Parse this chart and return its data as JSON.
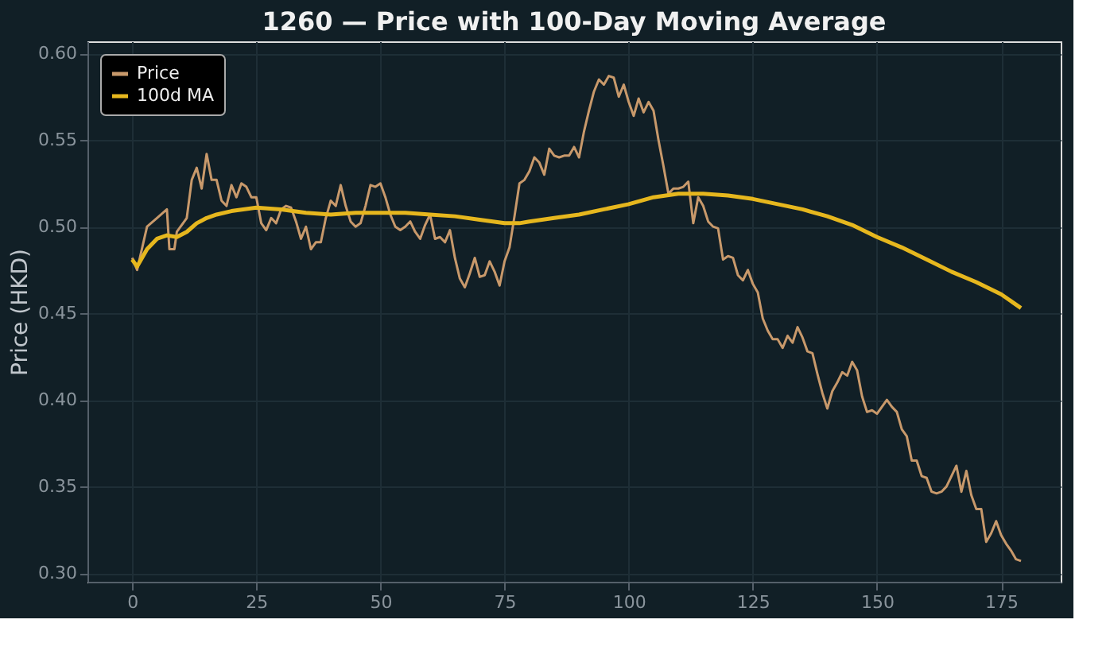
{
  "chart_data": {
    "type": "line",
    "title": "1260 — Price with 100-Day Moving Average",
    "ylabel": "Price (HKD)",
    "xlim": [
      -9,
      187
    ],
    "xticks": [
      0,
      25,
      50,
      75,
      100,
      125,
      150,
      175
    ],
    "ylim": [
      0.295,
      0.607
    ],
    "yticks": [
      {
        "value": 0.3,
        "label": "0.30"
      },
      {
        "value": 0.35,
        "label": "0.35"
      },
      {
        "value": 0.4,
        "label": "0.40"
      },
      {
        "value": 0.45,
        "label": "0.45"
      },
      {
        "value": 0.5,
        "label": "0.50"
      },
      {
        "value": 0.55,
        "label": "0.55"
      },
      {
        "value": 0.6,
        "label": "0.60"
      }
    ],
    "grid": true,
    "legend": "top left",
    "marker": "none",
    "line_style": "solid",
    "series": [
      {
        "name": "Price",
        "color": "#c8996b",
        "x": [
          0,
          1,
          3,
          5,
          7,
          7.5,
          8.5,
          9,
          11,
          12,
          13,
          14,
          15,
          16,
          17,
          18,
          19,
          20,
          21,
          22,
          23,
          24,
          25,
          26,
          27,
          28,
          29,
          30,
          31,
          32,
          33,
          34,
          35,
          36,
          37,
          38,
          39,
          40,
          41,
          42,
          43,
          44,
          45,
          46,
          47,
          48,
          49,
          50,
          51,
          52,
          53,
          54,
          55,
          56,
          57,
          58,
          59,
          60,
          61,
          62,
          63,
          64,
          65,
          66,
          67,
          68,
          69,
          70,
          71,
          72,
          73,
          74,
          75,
          76,
          77,
          78,
          79,
          80,
          81,
          82,
          83,
          84,
          85,
          86,
          87,
          88,
          89,
          90,
          91,
          92,
          93,
          94,
          95,
          96,
          97,
          98,
          99,
          100,
          101,
          102,
          103,
          104,
          105,
          106,
          107,
          108,
          109,
          110,
          111,
          112,
          113,
          114,
          115,
          116,
          117,
          118,
          119,
          120,
          121,
          122,
          123,
          124,
          125,
          126,
          127,
          128,
          129,
          130,
          131,
          132,
          133,
          134,
          135,
          136,
          137,
          138,
          139,
          140,
          141,
          142,
          143,
          144,
          145,
          146,
          147,
          148,
          149,
          150,
          151,
          152,
          153,
          154,
          155,
          156,
          157,
          158,
          159,
          160,
          161,
          162,
          163,
          164,
          165,
          166,
          167,
          168,
          169,
          170,
          171,
          172,
          173,
          174,
          175,
          176,
          177,
          178,
          179
        ],
        "values": [
          0.482,
          0.475,
          0.5,
          0.505,
          0.51,
          0.487,
          0.487,
          0.497,
          0.505,
          0.527,
          0.534,
          0.522,
          0.542,
          0.527,
          0.527,
          0.515,
          0.512,
          0.524,
          0.517,
          0.525,
          0.523,
          0.517,
          0.517,
          0.502,
          0.498,
          0.505,
          0.502,
          0.51,
          0.512,
          0.511,
          0.503,
          0.493,
          0.5,
          0.487,
          0.491,
          0.491,
          0.505,
          0.515,
          0.512,
          0.524,
          0.512,
          0.503,
          0.5,
          0.502,
          0.512,
          0.524,
          0.523,
          0.525,
          0.517,
          0.507,
          0.5,
          0.498,
          0.5,
          0.503,
          0.497,
          0.493,
          0.501,
          0.507,
          0.493,
          0.494,
          0.491,
          0.498,
          0.482,
          0.47,
          0.465,
          0.473,
          0.482,
          0.471,
          0.472,
          0.48,
          0.474,
          0.466,
          0.48,
          0.488,
          0.506,
          0.525,
          0.527,
          0.532,
          0.54,
          0.537,
          0.53,
          0.545,
          0.541,
          0.54,
          0.541,
          0.541,
          0.546,
          0.54,
          0.555,
          0.567,
          0.578,
          0.585,
          0.582,
          0.587,
          0.586,
          0.575,
          0.582,
          0.572,
          0.564,
          0.574,
          0.566,
          0.572,
          0.567,
          0.55,
          0.535,
          0.519,
          0.522,
          0.522,
          0.523,
          0.526,
          0.502,
          0.517,
          0.512,
          0.503,
          0.5,
          0.499,
          0.481,
          0.483,
          0.482,
          0.472,
          0.469,
          0.475,
          0.467,
          0.462,
          0.447,
          0.44,
          0.435,
          0.435,
          0.43,
          0.437,
          0.433,
          0.442,
          0.436,
          0.428,
          0.427,
          0.415,
          0.404,
          0.395,
          0.405,
          0.41,
          0.416,
          0.414,
          0.422,
          0.417,
          0.402,
          0.393,
          0.394,
          0.392,
          0.396,
          0.4,
          0.396,
          0.393,
          0.383,
          0.379,
          0.365,
          0.365,
          0.356,
          0.355,
          0.347,
          0.346,
          0.347,
          0.35,
          0.356,
          0.362,
          0.347,
          0.359,
          0.345,
          0.337,
          0.337,
          0.318,
          0.323,
          0.33,
          0.322,
          0.317,
          0.313,
          0.308,
          0.307
        ]
      },
      {
        "name": "100d MA",
        "color": "#e6b71e",
        "x": [
          0,
          1,
          3,
          5,
          7,
          9,
          11,
          13,
          15,
          17,
          20,
          25,
          30,
          35,
          40,
          45,
          50,
          55,
          60,
          65,
          70,
          75,
          78,
          80,
          85,
          90,
          95,
          100,
          105,
          110,
          115,
          120,
          125,
          130,
          135,
          140,
          145,
          150,
          155,
          160,
          165,
          170,
          175,
          179
        ],
        "values": [
          0.481,
          0.477,
          0.487,
          0.493,
          0.495,
          0.494,
          0.497,
          0.502,
          0.505,
          0.507,
          0.509,
          0.511,
          0.51,
          0.508,
          0.507,
          0.508,
          0.508,
          0.508,
          0.507,
          0.506,
          0.504,
          0.502,
          0.502,
          0.503,
          0.505,
          0.507,
          0.51,
          0.513,
          0.517,
          0.519,
          0.519,
          0.518,
          0.516,
          0.513,
          0.51,
          0.506,
          0.501,
          0.494,
          0.488,
          0.481,
          0.474,
          0.468,
          0.461,
          0.453
        ]
      }
    ]
  }
}
